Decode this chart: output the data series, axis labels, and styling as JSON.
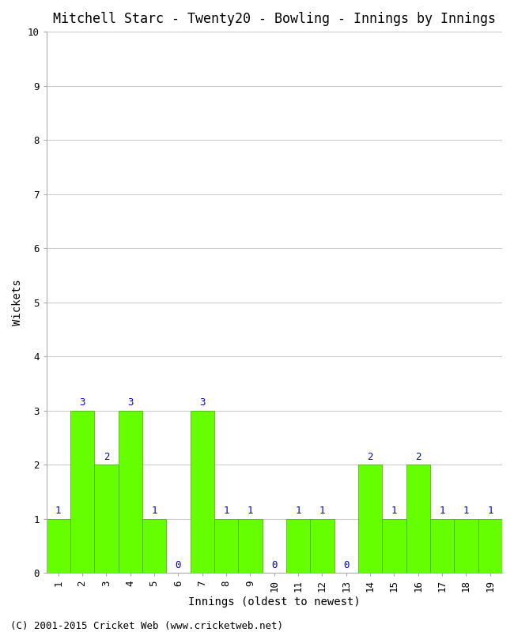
{
  "title": "Mitchell Starc - Twenty20 - Bowling - Innings by Innings",
  "xlabel": "Innings (oldest to newest)",
  "ylabel": "Wickets",
  "innings": [
    1,
    2,
    3,
    4,
    5,
    6,
    7,
    8,
    9,
    10,
    11,
    12,
    13,
    14,
    15,
    16,
    17,
    18,
    19
  ],
  "wickets": [
    1,
    3,
    2,
    3,
    1,
    0,
    3,
    1,
    1,
    0,
    1,
    1,
    0,
    2,
    1,
    2,
    1,
    1,
    1
  ],
  "bar_color": "#66ff00",
  "bar_edge_color": "#44aa00",
  "ylim": [
    0,
    10
  ],
  "yticks": [
    0,
    1,
    2,
    3,
    4,
    5,
    6,
    7,
    8,
    9,
    10
  ],
  "label_color": "#0000cc",
  "title_fontsize": 12,
  "axis_fontsize": 10,
  "tick_fontsize": 9,
  "label_fontsize": 9,
  "background_color": "#ffffff",
  "plot_bg_color": "#ffffff",
  "grid_color": "#cccccc",
  "footer": "(C) 2001-2015 Cricket Web (www.cricketweb.net)",
  "footer_fontsize": 9
}
